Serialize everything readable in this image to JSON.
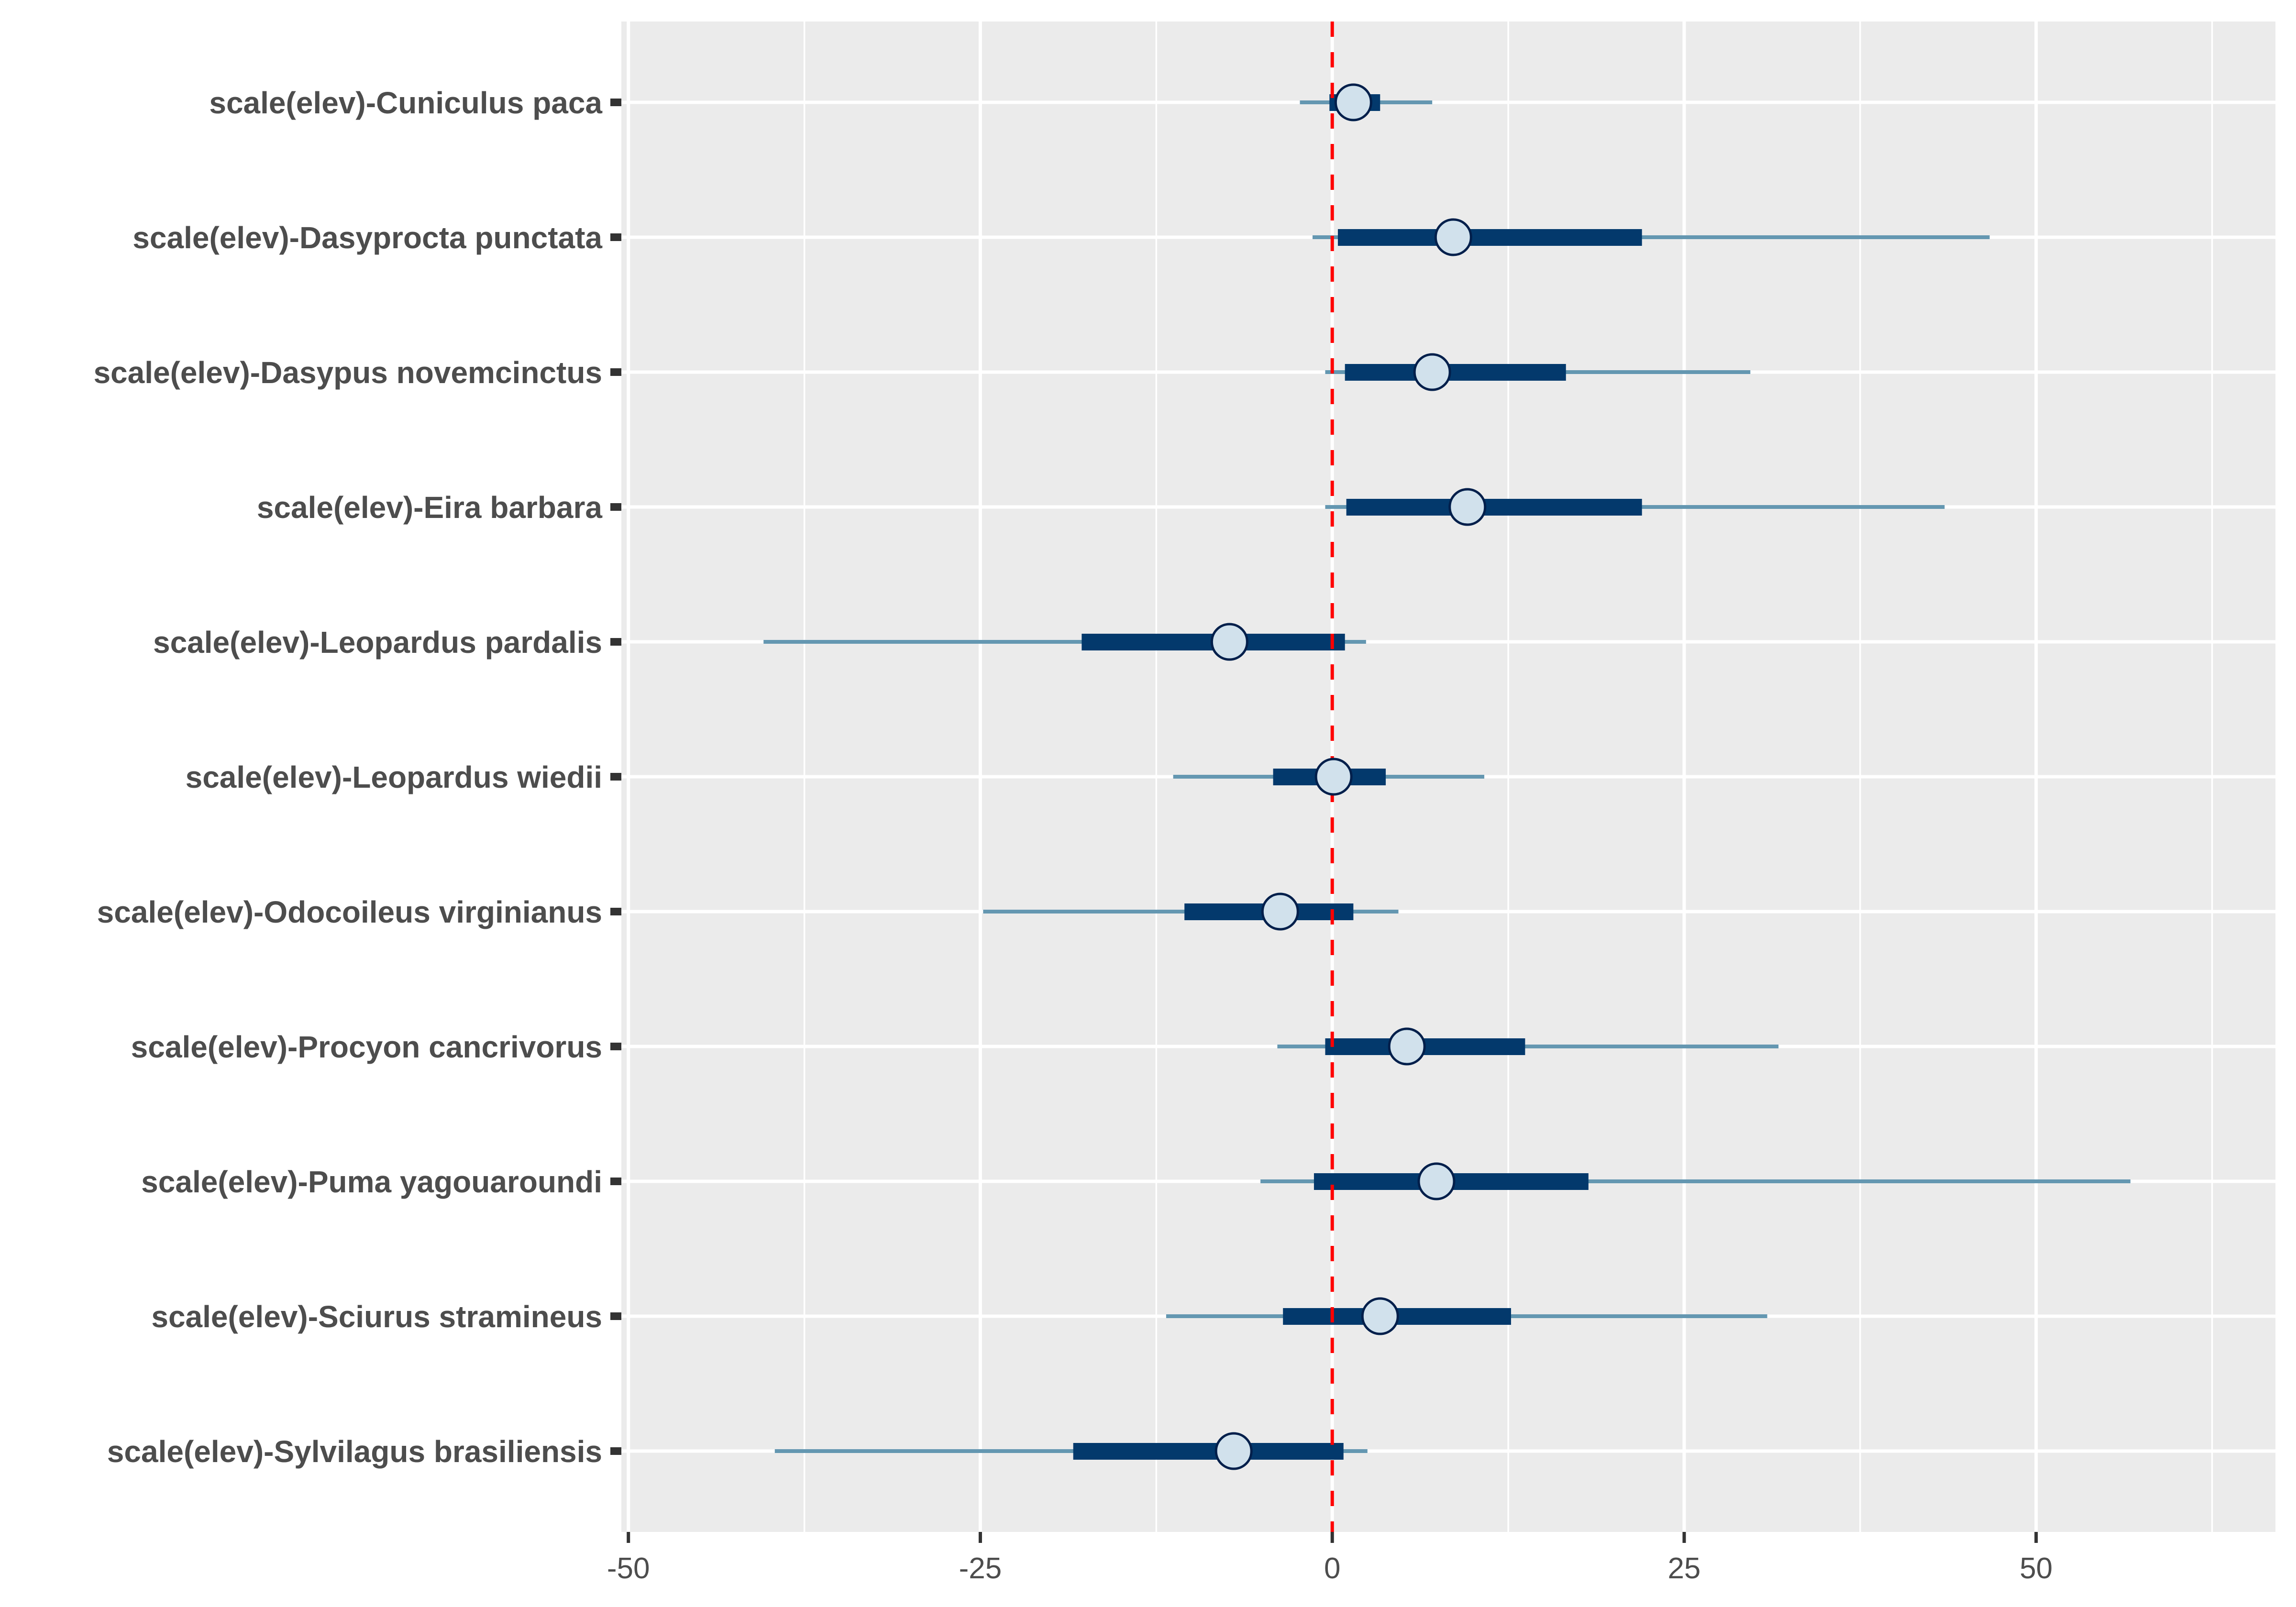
{
  "chart_data": {
    "type": "interval",
    "title": "",
    "xlabel": "",
    "ylabel": "",
    "xlim": [
      -50.5,
      67.0
    ],
    "x_ticks": [
      -50,
      -25,
      0,
      25,
      50
    ],
    "x_tick_labels": [
      "-50",
      "-25",
      "0",
      "25",
      "50"
    ],
    "x_minor_gridlines": [
      -37.5,
      -12.5,
      12.5,
      37.5,
      62.5
    ],
    "grid": true,
    "legend": "none",
    "reference_line": {
      "x": 0,
      "style": "dashed",
      "color": "#ff0000"
    },
    "colors": {
      "panel_background": "#ebebeb",
      "gridline": "#ffffff",
      "outer_interval": "#6497b1",
      "inner_interval": "#03396c",
      "point_fill": "#d1e1ec",
      "point_stroke": "#011f4b",
      "axis_text": "#4d4d4d",
      "tick": "#333333"
    },
    "interval_description": {
      "outer": "thin line (outer credible interval)",
      "inner": "thick bar (inner credible interval)",
      "point": "circle (point estimate)"
    },
    "categories": [
      "scale(elev)-Cuniculus paca",
      "scale(elev)-Dasyprocta punctata",
      "scale(elev)-Dasypus novemcinctus",
      "scale(elev)-Eira barbara",
      "scale(elev)-Leopardus pardalis",
      "scale(elev)-Leopardus wiedii",
      "scale(elev)-Odocoileus virginianus",
      "scale(elev)-Procyon cancrivorus",
      "scale(elev)-Puma yagouaroundi",
      "scale(elev)-Sciurus stramineus",
      "scale(elev)-Sylvilagus brasiliensis"
    ],
    "series": [
      {
        "name": "scale(elev)-Cuniculus paca",
        "outer_low": -2.3,
        "inner_low": -0.2,
        "estimate": 1.5,
        "inner_high": 3.4,
        "outer_high": 7.1
      },
      {
        "name": "scale(elev)-Dasyprocta punctata",
        "outer_low": -1.4,
        "inner_low": 0.4,
        "estimate": 8.6,
        "inner_high": 22.0,
        "outer_high": 46.7
      },
      {
        "name": "scale(elev)-Dasypus novemcinctus",
        "outer_low": -0.5,
        "inner_low": 0.9,
        "estimate": 7.1,
        "inner_high": 16.6,
        "outer_high": 29.7
      },
      {
        "name": "scale(elev)-Eira barbara",
        "outer_low": -0.5,
        "inner_low": 1.0,
        "estimate": 9.6,
        "inner_high": 22.0,
        "outer_high": 43.5
      },
      {
        "name": "scale(elev)-Leopardus pardalis",
        "outer_low": -40.4,
        "inner_low": -17.8,
        "estimate": -7.3,
        "inner_high": 0.9,
        "outer_high": 2.4
      },
      {
        "name": "scale(elev)-Leopardus wiedii",
        "outer_low": -11.3,
        "inner_low": -4.2,
        "estimate": 0.1,
        "inner_high": 3.8,
        "outer_high": 10.8
      },
      {
        "name": "scale(elev)-Odocoileus virginianus",
        "outer_low": -24.8,
        "inner_low": -10.5,
        "estimate": -3.7,
        "inner_high": 1.5,
        "outer_high": 4.7
      },
      {
        "name": "scale(elev)-Procyon cancrivorus",
        "outer_low": -3.9,
        "inner_low": -0.5,
        "estimate": 5.3,
        "inner_high": 13.7,
        "outer_high": 31.7
      },
      {
        "name": "scale(elev)-Puma yagouaroundi",
        "outer_low": -5.1,
        "inner_low": -1.3,
        "estimate": 7.4,
        "inner_high": 18.2,
        "outer_high": 56.7
      },
      {
        "name": "scale(elev)-Sciurus stramineus",
        "outer_low": -11.8,
        "inner_low": -3.5,
        "estimate": 3.4,
        "inner_high": 12.7,
        "outer_high": 30.9
      },
      {
        "name": "scale(elev)-Sylvilagus brasiliensis",
        "outer_low": -39.6,
        "inner_low": -18.4,
        "estimate": -7.0,
        "inner_high": 0.8,
        "outer_high": 2.5
      }
    ]
  }
}
